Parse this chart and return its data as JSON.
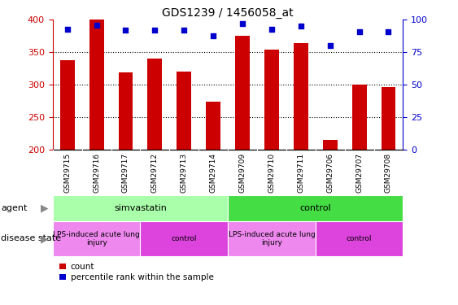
{
  "title": "GDS1239 / 1456058_at",
  "samples": [
    "GSM29715",
    "GSM29716",
    "GSM29717",
    "GSM29712",
    "GSM29713",
    "GSM29714",
    "GSM29709",
    "GSM29710",
    "GSM29711",
    "GSM29706",
    "GSM29707",
    "GSM29708"
  ],
  "counts": [
    338,
    400,
    319,
    340,
    320,
    274,
    376,
    354,
    364,
    215,
    300,
    296
  ],
  "percentiles": [
    93,
    96,
    92,
    92,
    92,
    88,
    97,
    93,
    95,
    80,
    91,
    91
  ],
  "bar_color": "#cc0000",
  "dot_color": "#0000cc",
  "left_axis_color": "#cc0000",
  "right_axis_color": "#0000cc",
  "ylim_left": [
    200,
    400
  ],
  "ylim_right": [
    0,
    100
  ],
  "yticks_left": [
    200,
    250,
    300,
    350,
    400
  ],
  "yticks_right": [
    0,
    25,
    50,
    75,
    100
  ],
  "agent_groups": [
    {
      "label": "simvastatin",
      "start": 0,
      "end": 6,
      "color": "#aaffaa"
    },
    {
      "label": "control",
      "start": 6,
      "end": 12,
      "color": "#44dd44"
    }
  ],
  "disease_groups": [
    {
      "label": "LPS-induced acute lung\ninjury",
      "start": 0,
      "end": 3,
      "color": "#ee88ee"
    },
    {
      "label": "control",
      "start": 3,
      "end": 6,
      "color": "#dd44dd"
    },
    {
      "label": "LPS-induced acute lung\ninjury",
      "start": 6,
      "end": 9,
      "color": "#ee88ee"
    },
    {
      "label": "control",
      "start": 9,
      "end": 12,
      "color": "#dd44dd"
    }
  ],
  "legend_count_label": "count",
  "legend_pct_label": "percentile rank within the sample",
  "agent_label": "agent",
  "disease_label": "disease state",
  "background_color": "#ffffff",
  "xtick_bg_color": "#cccccc",
  "arrow_color": "#888888"
}
